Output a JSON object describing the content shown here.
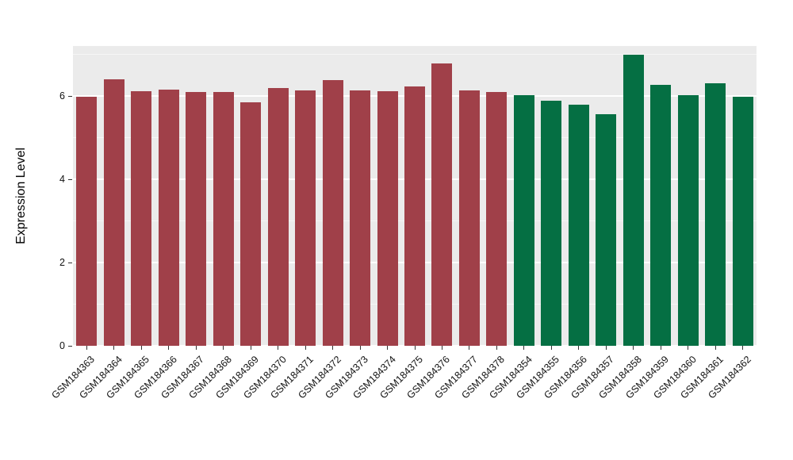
{
  "chart_data": {
    "type": "bar",
    "title": "",
    "xlabel": "",
    "ylabel": "Expression Level",
    "ylim": [
      0,
      7.2
    ],
    "yticks": [
      0,
      2,
      4,
      6
    ],
    "minor_gridlines": [
      1,
      3,
      5,
      7
    ],
    "grid": "on",
    "legend_position": "none",
    "panel_background": "#EBEBEB",
    "grid_color": "#FFFFFF",
    "group_colors": {
      "left_group": "#A04049",
      "right_group": "#056F43"
    },
    "categories": [
      "GSM184363",
      "GSM184364",
      "GSM184365",
      "GSM184366",
      "GSM184367",
      "GSM184368",
      "GSM184369",
      "GSM184370",
      "GSM184371",
      "GSM184372",
      "GSM184373",
      "GSM184374",
      "GSM184375",
      "GSM184376",
      "GSM184377",
      "GSM184378",
      "GSM184354",
      "GSM184355",
      "GSM184356",
      "GSM184357",
      "GSM184358",
      "GSM184359",
      "GSM184360",
      "GSM184361",
      "GSM184362"
    ],
    "values": [
      5.98,
      6.4,
      6.12,
      6.16,
      6.1,
      6.1,
      5.84,
      6.2,
      6.14,
      6.38,
      6.14,
      6.12,
      6.22,
      6.78,
      6.14,
      6.1,
      6.02,
      5.88,
      5.8,
      5.56,
      7.0,
      6.26,
      6.02,
      6.3,
      5.98
    ],
    "bar_colors": [
      "#A04049",
      "#A04049",
      "#A04049",
      "#A04049",
      "#A04049",
      "#A04049",
      "#A04049",
      "#A04049",
      "#A04049",
      "#A04049",
      "#A04049",
      "#A04049",
      "#A04049",
      "#A04049",
      "#A04049",
      "#A04049",
      "#056F43",
      "#056F43",
      "#056F43",
      "#056F43",
      "#056F43",
      "#056F43",
      "#056F43",
      "#056F43",
      "#056F43"
    ]
  }
}
